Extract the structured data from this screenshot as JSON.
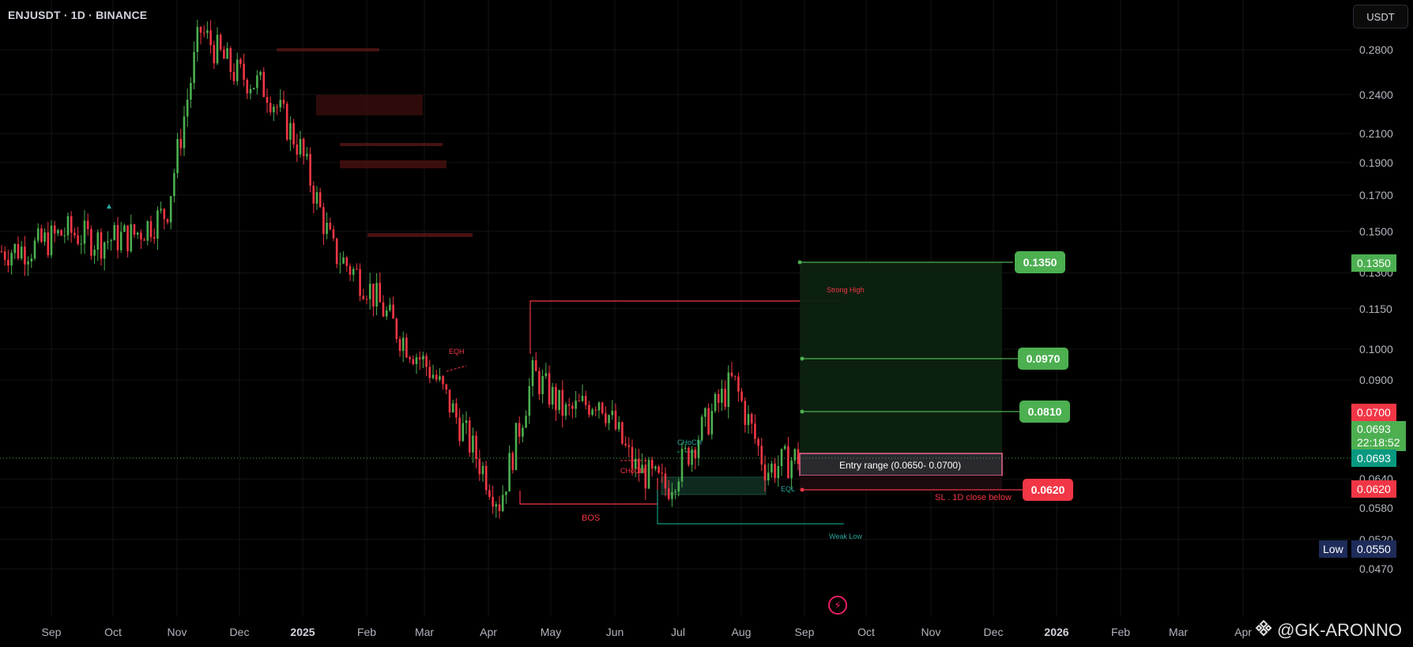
{
  "symbol": {
    "title": "ENJUSDT · 1D · BINANCE"
  },
  "currency_button": "USDT",
  "price_axis": {
    "ticks": [
      "0.2800",
      "0.2400",
      "0.2100",
      "0.1900",
      "0.1700",
      "0.1500",
      "0.1300",
      "0.1150",
      "0.1000",
      "0.0900",
      "0.0640",
      "0.0580",
      "0.0520",
      "0.0470"
    ],
    "tags": {
      "target3": "0.1350",
      "entry_high": "0.0700",
      "last_price": "0.0693",
      "countdown": "22:18:52",
      "mark_price": "0.0693",
      "stop_loss": "0.0620",
      "low_label": "Low",
      "low_value": "0.0550"
    },
    "colors": {
      "green": "#4caf50",
      "red": "#f23645",
      "navy": "#1e2c5a",
      "teal": "#089981"
    }
  },
  "time_axis": {
    "labels": [
      {
        "text": "Sep",
        "bold": false
      },
      {
        "text": "Oct",
        "bold": false
      },
      {
        "text": "Nov",
        "bold": false
      },
      {
        "text": "Dec",
        "bold": false
      },
      {
        "text": "2025",
        "bold": true
      },
      {
        "text": "Feb",
        "bold": false
      },
      {
        "text": "Mar",
        "bold": false
      },
      {
        "text": "Apr",
        "bold": false
      },
      {
        "text": "May",
        "bold": false
      },
      {
        "text": "Jun",
        "bold": false
      },
      {
        "text": "Jul",
        "bold": false
      },
      {
        "text": "Aug",
        "bold": false
      },
      {
        "text": "Sep",
        "bold": false
      },
      {
        "text": "Oct",
        "bold": false
      },
      {
        "text": "Nov",
        "bold": false
      },
      {
        "text": "Dec",
        "bold": false
      },
      {
        "text": "2026",
        "bold": true
      },
      {
        "text": "Feb",
        "bold": false
      },
      {
        "text": "Mar",
        "bold": false
      },
      {
        "text": "Apr",
        "bold": false
      }
    ]
  },
  "targets": {
    "t1": "0.0810",
    "t2": "0.0970",
    "t3": "0.1350",
    "sl": "0.0620"
  },
  "annotations": {
    "strong_high": "Strong High",
    "weak_low": "Weak Low",
    "eqh": "EQH",
    "eql": "EQL",
    "choch": "CHoCH",
    "bos": "BOS",
    "entry": "Entry range    (0.0650- 0.0700)",
    "sl_note": "SL . 1D close below"
  },
  "watermark": "@GK-ARONNO",
  "chart_data": {
    "type": "candlestick",
    "symbol": "ENJUSDT",
    "interval": "1D",
    "exchange": "BINANCE",
    "y_scale": "log",
    "y_range": [
      0.045,
      0.33
    ],
    "close_path": [
      {
        "x": "Aug 2024",
        "y": 0.14
      },
      {
        "x": "Sep 2024",
        "y": 0.142
      },
      {
        "x": "Oct 2024",
        "y": 0.15
      },
      {
        "x": "Oct 2024 end",
        "y": 0.145
      },
      {
        "x": "Nov 2024",
        "y": 0.148
      },
      {
        "x": "Nov 2024 end",
        "y": 0.16
      },
      {
        "x": "Dec 2024",
        "y": 0.3
      },
      {
        "x": "Dec 2024 mid",
        "y": 0.26
      },
      {
        "x": "2025",
        "y": 0.245
      },
      {
        "x": "Jan 2025 mid",
        "y": 0.2
      },
      {
        "x": "Feb 2025",
        "y": 0.14
      },
      {
        "x": "Feb 2025 mid",
        "y": 0.125
      },
      {
        "x": "Mar 2025",
        "y": 0.105
      },
      {
        "x": "Mar 2025 mid",
        "y": 0.092
      },
      {
        "x": "Apr 2025",
        "y": 0.074
      },
      {
        "x": "Apr 2025 mid",
        "y": 0.059
      },
      {
        "x": "May 2025",
        "y": 0.092
      },
      {
        "x": "May 2025 mid",
        "y": 0.08
      },
      {
        "x": "Jun 2025",
        "y": 0.085
      },
      {
        "x": "Jun 2025 mid",
        "y": 0.067
      },
      {
        "x": "Jul 2025",
        "y": 0.062
      },
      {
        "x": "Jul 2025 mid",
        "y": 0.075
      },
      {
        "x": "Aug 2025",
        "y": 0.09
      },
      {
        "x": "Aug 2025 mid",
        "y": 0.066
      },
      {
        "x": "Sep 2025",
        "y": 0.0693
      }
    ],
    "levels": {
      "target1": 0.081,
      "target2": 0.097,
      "target3": 0.135,
      "entry_low": 0.065,
      "entry_high": 0.07,
      "stop_loss": 0.062,
      "low": 0.055,
      "strong_high": 0.118
    }
  }
}
